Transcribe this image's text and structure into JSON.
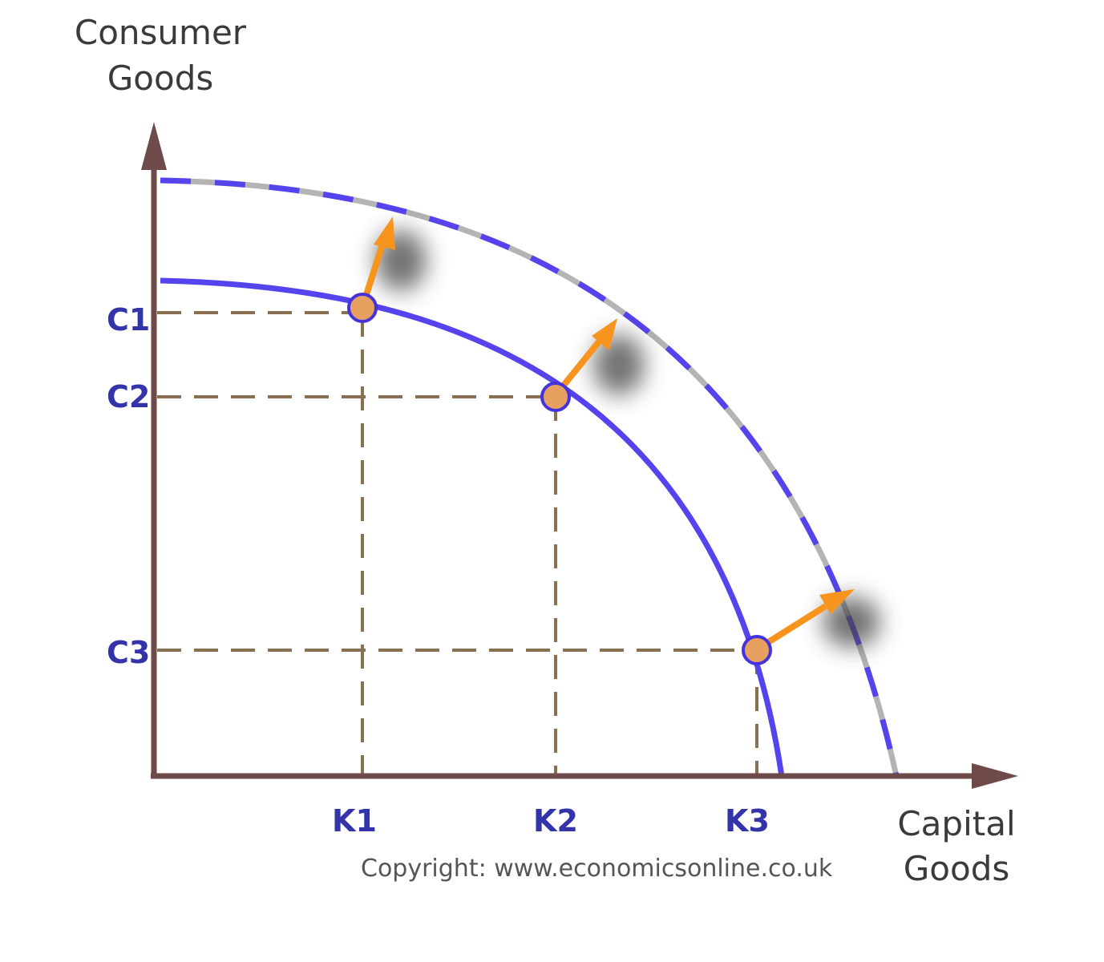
{
  "axes": {
    "y_title_line1": "Consumer",
    "y_title_line2": "Goods",
    "x_title_line1": "Capital",
    "x_title_line2": "Goods"
  },
  "y_ticks": [
    "C1",
    "C2",
    "C3"
  ],
  "x_ticks": [
    "K1",
    "K2",
    "K3"
  ],
  "copyright": "Copyright: www.economicsonline.co.uk",
  "colors": {
    "axis": "#6e4a4a",
    "curve": "#5544ee",
    "dash_curve_alt": "#b4b4b4",
    "guide": "#8a7050",
    "point_fill": "#e8a060",
    "arrow": "#f7941d",
    "tick_text": "#3333aa"
  }
}
